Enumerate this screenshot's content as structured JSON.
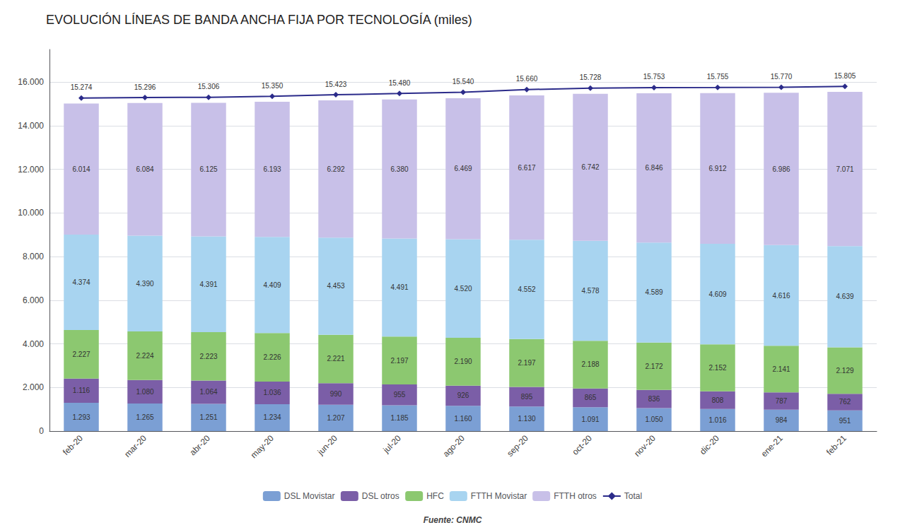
{
  "chart_data": {
    "type": "bar",
    "title": "EVOLUCIÓN LÍNEAS DE BANDA ANCHA FIJA POR TECNOLOGÍA (miles)",
    "annotations": [
      "Fuente: CNMC"
    ],
    "categories": [
      "feb-20",
      "mar-20",
      "abr-20",
      "may-20",
      "jun-20",
      "jul-20",
      "ago-20",
      "sep-20",
      "oct-20",
      "nov-20",
      "dic-20",
      "ene-21",
      "feb-21"
    ],
    "stacked": true,
    "data_labels": true,
    "grid": true,
    "legend": "bottom",
    "ylim": [
      0,
      17500
    ],
    "yticks": [
      0,
      {
        "value": 2000,
        "label": "2.000"
      },
      {
        "value": 4000,
        "label": "4.000"
      },
      {
        "value": 6000,
        "label": "6.000"
      },
      {
        "value": 8000,
        "label": "8.000"
      },
      {
        "value": 10000,
        "label": "10.000"
      },
      {
        "value": 12000,
        "label": "12.000"
      },
      {
        "value": 14000,
        "label": "14.000"
      },
      {
        "value": 16000,
        "label": "16.000"
      }
    ],
    "series": [
      {
        "name": "DSL Movistar",
        "type": "bar",
        "color": "#7b9fd4",
        "values": [
          1293,
          1265,
          1251,
          1234,
          1207,
          1185,
          1160,
          1130,
          1091,
          1050,
          1016,
          984,
          951
        ],
        "value_labels": [
          "1.293",
          "1.265",
          "1.251",
          "1.234",
          "1.207",
          "1.185",
          "1.160",
          "1.130",
          "1.091",
          "1.050",
          "1.016",
          "984",
          "951"
        ]
      },
      {
        "name": "DSL otros",
        "type": "bar",
        "color": "#7b5ea7",
        "values": [
          1116,
          1080,
          1064,
          1036,
          990,
          955,
          926,
          895,
          865,
          836,
          808,
          787,
          762
        ],
        "value_labels": [
          "1.116",
          "1.080",
          "1.064",
          "1.036",
          "990",
          "955",
          "926",
          "895",
          "865",
          "836",
          "808",
          "787",
          "762"
        ]
      },
      {
        "name": "HFC",
        "type": "bar",
        "color": "#8cc870",
        "values": [
          2227,
          2224,
          2223,
          2226,
          2221,
          2197,
          2190,
          2197,
          2188,
          2172,
          2152,
          2141,
          2129
        ],
        "value_labels": [
          "2.227",
          "2.224",
          "2.223",
          "2.226",
          "2.221",
          "2.197",
          "2.190",
          "2.197",
          "2.188",
          "2.172",
          "2.152",
          "2.141",
          "2.129"
        ]
      },
      {
        "name": "FTTH Movistar",
        "type": "bar",
        "color": "#a8d4f0",
        "values": [
          4374,
          4390,
          4391,
          4409,
          4453,
          4491,
          4520,
          4552,
          4578,
          4589,
          4609,
          4616,
          4639
        ],
        "value_labels": [
          "4.374",
          "4.390",
          "4.391",
          "4.409",
          "4.453",
          "4.491",
          "4.520",
          "4.552",
          "4.578",
          "4.589",
          "4.609",
          "4.616",
          "4.639"
        ]
      },
      {
        "name": "FTTH otros",
        "type": "bar",
        "color": "#c8c0e8",
        "values": [
          6014,
          6084,
          6125,
          6193,
          6292,
          6380,
          6469,
          6617,
          6742,
          6846,
          6912,
          6986,
          7071
        ],
        "value_labels": [
          "6.014",
          "6.084",
          "6.125",
          "6.193",
          "6.292",
          "6.380",
          "6.469",
          "6.617",
          "6.742",
          "6.846",
          "6.912",
          "6.986",
          "7.071"
        ]
      },
      {
        "name": "Total",
        "type": "line",
        "color": "#2b2b8a",
        "marker": "diamond",
        "values": [
          15274,
          15296,
          15306,
          15350,
          15423,
          15480,
          15540,
          15660,
          15728,
          15753,
          15755,
          15770,
          15805
        ],
        "value_labels": [
          "15.274",
          "15.296",
          "15.306",
          "15.350",
          "15.423",
          "15.480",
          "15.540",
          "15.660",
          "15.728",
          "15.753",
          "15.755",
          "15.770",
          "15.805"
        ]
      }
    ]
  }
}
